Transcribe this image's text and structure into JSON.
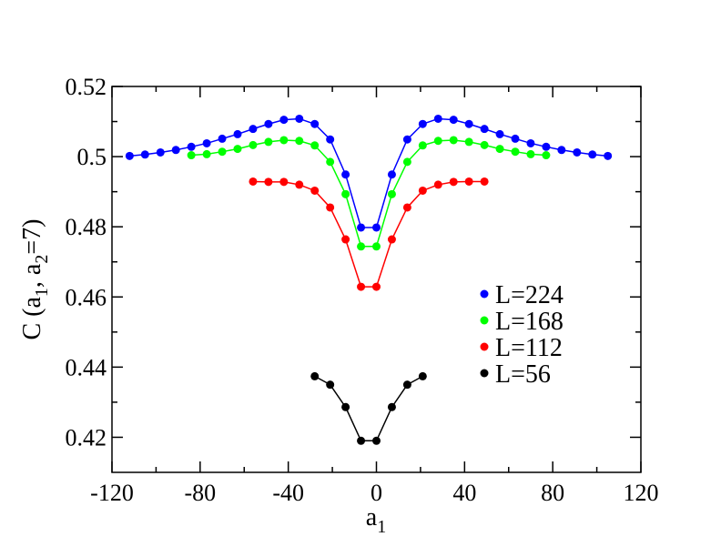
{
  "chart_data": {
    "type": "line",
    "title": "",
    "xlabel": "a",
    "xlabel_sub": "1",
    "ylabel_parts": [
      "C (a",
      "1",
      ", a",
      "2",
      "=7)"
    ],
    "xlim": [
      -120,
      120
    ],
    "ylim": [
      0.41,
      0.52
    ],
    "xticks": [
      -120,
      -80,
      -40,
      0,
      40,
      80,
      120
    ],
    "xtick_labels": [
      "-120",
      "-80",
      "-40",
      "0",
      "40",
      "80",
      "120"
    ],
    "yticks": [
      0.42,
      0.44,
      0.46,
      0.48,
      0.5,
      0.52
    ],
    "ytick_labels": [
      "0.42",
      "0.44",
      "0.46",
      "0.48",
      "0.5",
      "0.52"
    ],
    "grid": false,
    "legend_position": "right-middle",
    "series": [
      {
        "name": "L=224",
        "color": "#0000ff",
        "x": [
          -112,
          -105,
          -98,
          -91,
          -84,
          -77,
          -70,
          -63,
          -56,
          -49,
          -42,
          -35,
          -28,
          -21,
          -14,
          -7,
          0,
          7,
          14,
          21,
          28,
          35,
          42,
          49,
          56,
          63,
          70,
          77,
          84,
          91,
          98,
          105
        ],
        "y": [
          0.5002,
          0.5006,
          0.5012,
          0.5019,
          0.5028,
          0.5038,
          0.5051,
          0.5064,
          0.5079,
          0.5093,
          0.5105,
          0.5108,
          0.5093,
          0.5049,
          0.4949,
          0.4798,
          0.4798,
          0.4949,
          0.5049,
          0.5093,
          0.5108,
          0.5105,
          0.5093,
          0.5079,
          0.5064,
          0.5051,
          0.5038,
          0.5028,
          0.5019,
          0.5012,
          0.5006,
          0.5002
        ]
      },
      {
        "name": "L=168",
        "color": "#00ff00",
        "x": [
          -84,
          -77,
          -70,
          -63,
          -56,
          -49,
          -42,
          -35,
          -28,
          -21,
          -14,
          -7,
          0,
          7,
          14,
          21,
          28,
          35,
          42,
          49,
          56,
          63,
          70,
          77
        ],
        "y": [
          0.5004,
          0.5007,
          0.5014,
          0.5022,
          0.5033,
          0.5042,
          0.5047,
          0.5045,
          0.5032,
          0.4985,
          0.4893,
          0.4744,
          0.4744,
          0.4893,
          0.4985,
          0.5032,
          0.5045,
          0.5047,
          0.5042,
          0.5033,
          0.5022,
          0.5014,
          0.5007,
          0.5004
        ]
      },
      {
        "name": "L=112",
        "color": "#ff0000",
        "x": [
          -56,
          -49,
          -42,
          -35,
          -28,
          -21,
          -14,
          -7,
          0,
          7,
          14,
          21,
          28,
          35,
          42,
          49
        ],
        "y": [
          0.4929,
          0.4928,
          0.4928,
          0.492,
          0.4903,
          0.4855,
          0.4764,
          0.4629,
          0.4629,
          0.4764,
          0.4855,
          0.4903,
          0.492,
          0.4928,
          0.4929,
          0.4929
        ]
      },
      {
        "name": "L=56",
        "color": "#000000",
        "x": [
          -28,
          -21,
          -14,
          -7,
          0,
          7,
          14,
          21
        ],
        "y": [
          0.4374,
          0.435,
          0.4286,
          0.419,
          0.419,
          0.4286,
          0.435,
          0.4374
        ]
      }
    ]
  }
}
